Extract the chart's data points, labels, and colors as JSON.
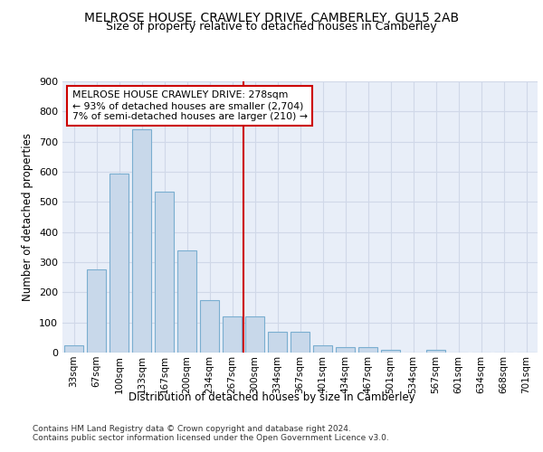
{
  "title": "MELROSE HOUSE, CRAWLEY DRIVE, CAMBERLEY, GU15 2AB",
  "subtitle": "Size of property relative to detached houses in Camberley",
  "xlabel": "Distribution of detached houses by size in Camberley",
  "ylabel": "Number of detached properties",
  "categories": [
    "33sqm",
    "67sqm",
    "100sqm",
    "133sqm",
    "167sqm",
    "200sqm",
    "234sqm",
    "267sqm",
    "300sqm",
    "334sqm",
    "367sqm",
    "401sqm",
    "434sqm",
    "467sqm",
    "501sqm",
    "534sqm",
    "567sqm",
    "601sqm",
    "634sqm",
    "668sqm",
    "701sqm"
  ],
  "values": [
    25,
    275,
    595,
    740,
    535,
    338,
    175,
    120,
    120,
    68,
    68,
    25,
    18,
    18,
    10,
    0,
    10,
    0,
    0,
    0,
    0
  ],
  "bar_color": "#c8d8ea",
  "bar_edge_color": "#7aaed0",
  "grid_color": "#d0d8e8",
  "bg_color": "#e8eef8",
  "vline_x_index": 7,
  "vline_color": "#cc0000",
  "annotation_text": "MELROSE HOUSE CRAWLEY DRIVE: 278sqm\n← 93% of detached houses are smaller (2,704)\n7% of semi-detached houses are larger (210) →",
  "annotation_box_color": "#ffffff",
  "annotation_box_edge": "#cc0000",
  "footer_line1": "Contains HM Land Registry data © Crown copyright and database right 2024.",
  "footer_line2": "Contains public sector information licensed under the Open Government Licence v3.0.",
  "ylim": [
    0,
    900
  ],
  "yticks": [
    0,
    100,
    200,
    300,
    400,
    500,
    600,
    700,
    800,
    900
  ],
  "title_fontsize": 10,
  "subtitle_fontsize": 9
}
